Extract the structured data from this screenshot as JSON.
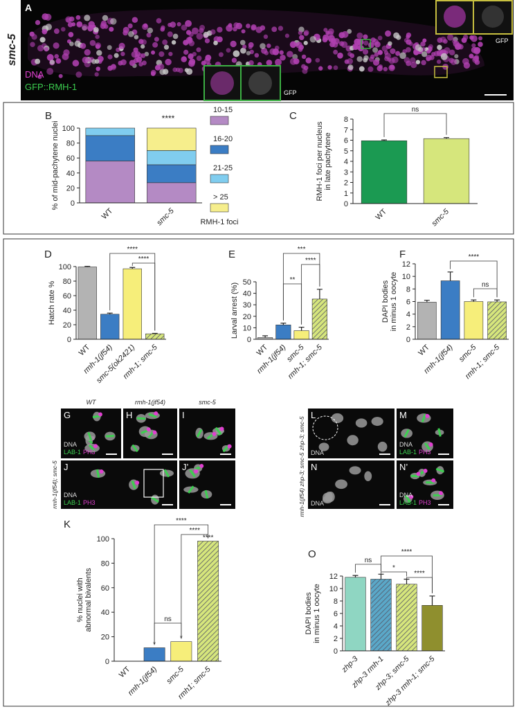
{
  "figure_a": {
    "label": "A",
    "strain": "smc-5",
    "channels": [
      "DNA",
      "GFP::RMH-1"
    ],
    "inset_channel": "GFP"
  },
  "chart_data": [
    {
      "type": "stacked_bar",
      "label": "B",
      "ylabel": "% of mid-pachytene nuclei",
      "categories": [
        "WT",
        "smc-5"
      ],
      "series": [
        {
          "name": "10-15",
          "color": "#b48ac4",
          "values": [
            56,
            27
          ]
        },
        {
          "name": "16-20",
          "color": "#3b7dc4",
          "values": [
            34,
            24
          ]
        },
        {
          "name": "21-25",
          "color": "#80cdef",
          "values": [
            10,
            19
          ]
        },
        {
          "name": "> 25",
          "color": "#f6ee8c",
          "values": [
            0,
            30
          ]
        }
      ],
      "legend_title": "RMH-1 foci",
      "annotations": [
        "****"
      ],
      "ylim": [
        0,
        100
      ],
      "yticks": [
        0,
        20,
        40,
        60,
        80,
        100
      ]
    },
    {
      "type": "bar",
      "label": "C",
      "ylabel": [
        "RMH-1 foci per nucleus",
        "in late pachytene"
      ],
      "categories": [
        "WT",
        "smc-5"
      ],
      "values": [
        5.95,
        6.15
      ],
      "errors": [
        0.08,
        0.1
      ],
      "colors": [
        "#1b9a52",
        "#d6e67c"
      ],
      "hatched": [
        false,
        false
      ],
      "annotations": [
        "ns"
      ],
      "ylim": [
        0,
        8
      ],
      "yticks": [
        0,
        1,
        2,
        3,
        4,
        5,
        6,
        7,
        8
      ]
    },
    {
      "type": "bar",
      "label": "D",
      "ylabel": "Hatch rate %",
      "categories": [
        "WT",
        "rmh-1(jf54)",
        "smc-5(ok2421)",
        "rmh-1; smc-5"
      ],
      "values": [
        99.5,
        34.5,
        97,
        7.5
      ],
      "errors": [
        0.8,
        1.5,
        1.8,
        0.6
      ],
      "colors": [
        "#b3b3b3",
        "#3b7dc4",
        "#f6ee7a",
        "#d6e67c"
      ],
      "hatched": [
        false,
        false,
        false,
        true
      ],
      "annotations": [
        "****",
        "****"
      ],
      "ylim": [
        0,
        100
      ],
      "yticks": [
        0,
        20,
        40,
        60,
        80,
        100
      ]
    },
    {
      "type": "bar",
      "label": "E",
      "ylabel": "Larval arrest (%)",
      "categories": [
        "WT",
        "rmh-1(jf54)",
        "smc-5",
        "rmh-1; smc-5"
      ],
      "values": [
        1.5,
        12.5,
        7.5,
        35
      ],
      "errors": [
        1.5,
        1.5,
        3,
        8.5
      ],
      "colors": [
        "#b3b3b3",
        "#3b7dc4",
        "#f6ee7a",
        "#d6e67c"
      ],
      "hatched": [
        false,
        false,
        false,
        true
      ],
      "annotations": [
        "***",
        "**",
        "****"
      ],
      "ylim": [
        0,
        50
      ],
      "yticks": [
        0,
        10,
        20,
        30,
        40,
        50
      ]
    },
    {
      "type": "bar",
      "label": "F",
      "ylabel": [
        "DAPI bodies",
        "in minus 1 oocyte"
      ],
      "categories": [
        "WT",
        "rmh-1(jf54)",
        "smc-5",
        "rmh-1; smc-5"
      ],
      "values": [
        5.9,
        9.3,
        6,
        5.95
      ],
      "errors": [
        0.3,
        1.4,
        0.25,
        0.3
      ],
      "colors": [
        "#b3b3b3",
        "#3b7dc4",
        "#f6ee7a",
        "#d6e67c"
      ],
      "hatched": [
        false,
        false,
        false,
        true
      ],
      "annotations": [
        "****",
        "ns"
      ],
      "ylim": [
        0,
        12
      ],
      "yticks": [
        0,
        2,
        4,
        6,
        8,
        10,
        12
      ]
    },
    {
      "type": "bar",
      "label": "K",
      "ylabel": [
        "% nuclei with",
        "abnormal bivalents"
      ],
      "categories": [
        "WT",
        "rmh-1(jf54)",
        "smc-5",
        "rmh1; smc-5"
      ],
      "values": [
        0,
        11,
        16,
        98
      ],
      "colors": [
        "#b3b3b3",
        "#3b7dc4",
        "#f6ee7a",
        "#d6e67c"
      ],
      "hatched": [
        false,
        false,
        false,
        true
      ],
      "annotations": [
        "*",
        "*",
        "****",
        "ns",
        "****",
        "****"
      ],
      "ylim": [
        0,
        100
      ],
      "yticks": [
        0,
        20,
        40,
        60,
        80,
        100
      ]
    },
    {
      "type": "bar",
      "label": "O",
      "ylabel": [
        "DAPI bodies",
        "in minus 1 oocyte"
      ],
      "categories": [
        "zhp-3",
        "zhp-3 rmh-1",
        "zhp-3; smc-5",
        "zhp-3 rmh-1; smc-5"
      ],
      "values": [
        11.8,
        11.5,
        10.7,
        7.3
      ],
      "errors": [
        0.3,
        0.8,
        0.8,
        1.5
      ],
      "colors": [
        "#8fd6c2",
        "#5aa8c8",
        "#d6e67c",
        "#8f8f2e"
      ],
      "hatched": [
        false,
        true,
        true,
        false
      ],
      "annotations": [
        "ns",
        "*",
        "****",
        "****"
      ],
      "ylim": [
        0,
        12
      ],
      "yticks": [
        0,
        2,
        4,
        6,
        8,
        10,
        12
      ]
    }
  ],
  "micrographs": [
    {
      "label": "G",
      "genotype": "WT",
      "channels": [
        "DNA",
        "LAB-1",
        "PH3"
      ]
    },
    {
      "label": "H",
      "genotype": "rmh-1(jf54)"
    },
    {
      "label": "I",
      "genotype": "smc-5"
    },
    {
      "label": "J",
      "genotype": "rmh-1(jf54); smc-5",
      "channels": [
        "DNA",
        "LAB-1",
        "PH3"
      ]
    },
    {
      "label": "J’"
    },
    {
      "label": "L",
      "genotype": "zhp-3; smc-5",
      "channels": [
        "DNA"
      ]
    },
    {
      "label": "M",
      "channels": [
        "DNA",
        "LAB-1",
        "PH3"
      ]
    },
    {
      "label": "N",
      "genotype": "rmh-1(jf54) zhp-3; smc-5",
      "channels": [
        "DNA"
      ]
    },
    {
      "label": "N’",
      "channels": [
        "DNA",
        "LAB-1",
        "PH3"
      ]
    }
  ]
}
